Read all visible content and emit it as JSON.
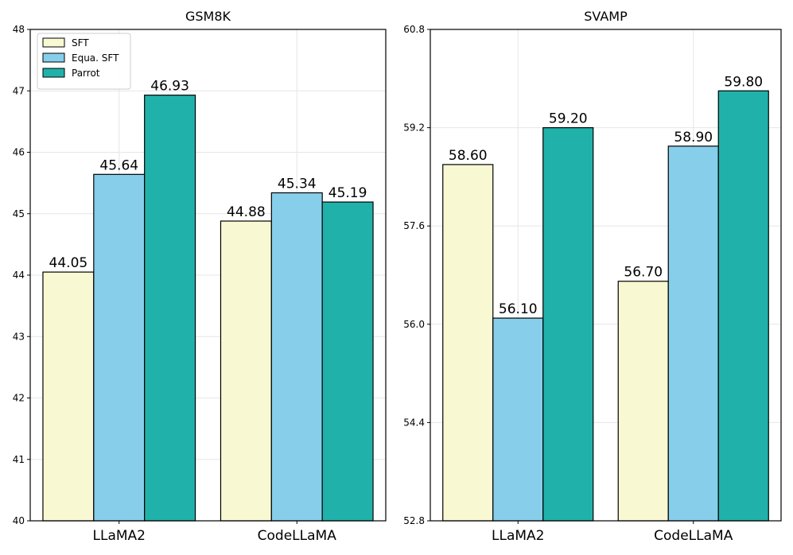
{
  "chart_data": [
    {
      "type": "bar",
      "title": "GSM8K",
      "categories": [
        "LLaMA2",
        "CodeLLaMA"
      ],
      "series": [
        {
          "name": "SFT",
          "values": [
            44.05,
            44.88
          ],
          "color": "#f8f8d2"
        },
        {
          "name": "Equa. SFT",
          "values": [
            45.64,
            45.34
          ],
          "color": "#87ceea"
        },
        {
          "name": "Parrot",
          "values": [
            46.93,
            45.19
          ],
          "color": "#20b2aa"
        }
      ],
      "value_labels": [
        [
          "44.05",
          "44.88"
        ],
        [
          "45.64",
          "45.34"
        ],
        [
          "46.93",
          "45.19"
        ]
      ],
      "ylim": [
        40,
        48
      ],
      "yticks": [
        "40",
        "41",
        "42",
        "43",
        "44",
        "45",
        "46",
        "47",
        "48"
      ],
      "ytick_values": [
        40,
        41,
        42,
        43,
        44,
        45,
        46,
        47,
        48
      ],
      "grid": true,
      "legend": {
        "position": "top-left",
        "entries": [
          "SFT",
          "Equa. SFT",
          "Parrot"
        ]
      },
      "xlabel": "",
      "ylabel": ""
    },
    {
      "type": "bar",
      "title": "SVAMP",
      "categories": [
        "LLaMA2",
        "CodeLLaMA"
      ],
      "series": [
        {
          "name": "SFT",
          "values": [
            58.6,
            56.7
          ],
          "color": "#f8f8d2"
        },
        {
          "name": "Equa. SFT",
          "values": [
            56.1,
            58.9
          ],
          "color": "#87ceea"
        },
        {
          "name": "Parrot",
          "values": [
            59.2,
            59.8
          ],
          "color": "#20b2aa"
        }
      ],
      "value_labels": [
        [
          "58.60",
          "56.70"
        ],
        [
          "56.10",
          "58.90"
        ],
        [
          "59.20",
          "59.80"
        ]
      ],
      "ylim": [
        52.8,
        60.8
      ],
      "yticks": [
        "52.8",
        "54.4",
        "56.0",
        "57.6",
        "59.2",
        "60.8"
      ],
      "ytick_values": [
        52.8,
        54.4,
        56.0,
        57.6,
        59.2,
        60.8
      ],
      "grid": true,
      "xlabel": "",
      "ylabel": ""
    }
  ]
}
